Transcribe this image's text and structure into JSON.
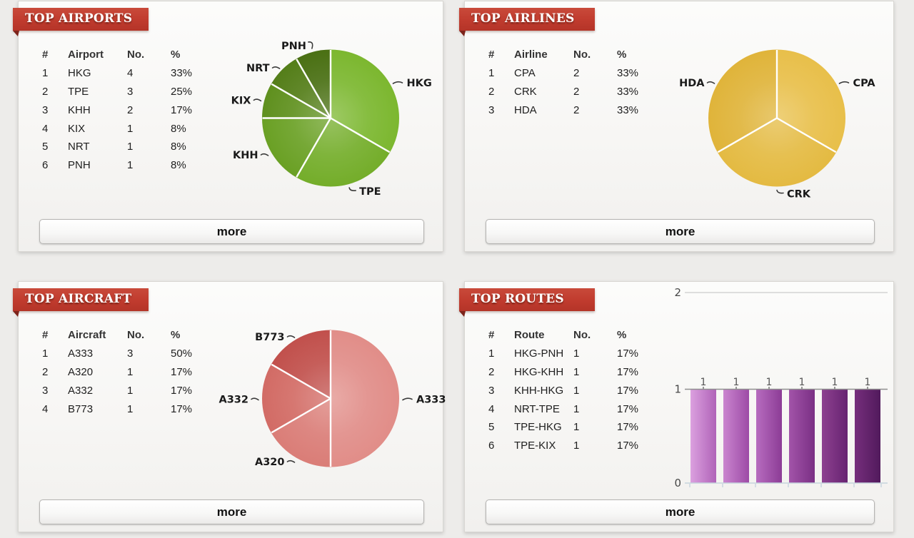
{
  "page_bg": "#edecea",
  "accent_red": "#c03b2e",
  "panels": [
    {
      "title": "TOP AIRPORTS",
      "table": {
        "columns": [
          "#",
          "Airport",
          "No.",
          "%"
        ],
        "rows": [
          [
            "1",
            "HKG",
            "4",
            "33%"
          ],
          [
            "2",
            "TPE",
            "3",
            "25%"
          ],
          [
            "3",
            "KHH",
            "2",
            "17%"
          ],
          [
            "4",
            "KIX",
            "1",
            "8%"
          ],
          [
            "5",
            "NRT",
            "1",
            "8%"
          ],
          [
            "6",
            "PNH",
            "1",
            "8%"
          ]
        ]
      },
      "more_label": "more"
    },
    {
      "title": "TOP AIRLINES",
      "table": {
        "columns": [
          "#",
          "Airline",
          "No.",
          "%"
        ],
        "rows": [
          [
            "1",
            "CPA",
            "2",
            "33%"
          ],
          [
            "2",
            "CRK",
            "2",
            "33%"
          ],
          [
            "3",
            "HDA",
            "2",
            "33%"
          ]
        ]
      },
      "more_label": "more"
    },
    {
      "title": "TOP AIRCRAFT",
      "table": {
        "columns": [
          "#",
          "Aircraft",
          "No.",
          "%"
        ],
        "rows": [
          [
            "1",
            "A333",
            "3",
            "50%"
          ],
          [
            "2",
            "A320",
            "1",
            "17%"
          ],
          [
            "3",
            "A332",
            "1",
            "17%"
          ],
          [
            "4",
            "B773",
            "1",
            "17%"
          ]
        ]
      },
      "more_label": "more"
    },
    {
      "title": "TOP ROUTES",
      "table": {
        "columns": [
          "#",
          "Route",
          "No.",
          "%"
        ],
        "rows": [
          [
            "1",
            "HKG-PNH",
            "1",
            "17%"
          ],
          [
            "2",
            "HKG-KHH",
            "1",
            "17%"
          ],
          [
            "3",
            "KHH-HKG",
            "1",
            "17%"
          ],
          [
            "4",
            "NRT-TPE",
            "1",
            "17%"
          ],
          [
            "5",
            "TPE-HKG",
            "1",
            "17%"
          ],
          [
            "6",
            "TPE-KIX",
            "1",
            "17%"
          ]
        ]
      },
      "more_label": "more"
    }
  ],
  "chart_data": [
    {
      "type": "pie",
      "title": "TOP AIRPORTS",
      "categories": [
        "HKG",
        "TPE",
        "KHH",
        "KIX",
        "NRT",
        "PNH"
      ],
      "values": [
        4,
        3,
        2,
        1,
        1,
        1
      ],
      "percents": [
        33,
        25,
        17,
        8,
        8,
        8
      ],
      "colors": [
        "#7cb72f",
        "#74ad2a",
        "#6aa024",
        "#5f901e",
        "#547e19",
        "#4a7013"
      ],
      "start_angle": 0,
      "direction": "clockwise",
      "legend_position": "outside-labels"
    },
    {
      "type": "pie",
      "title": "TOP AIRLINES",
      "categories": [
        "CPA",
        "CRK",
        "HDA"
      ],
      "values": [
        2,
        2,
        2
      ],
      "percents": [
        33,
        33,
        33
      ],
      "colors": [
        "#e8bf4a",
        "#e4ba42",
        "#e0b43a"
      ],
      "start_angle": 0,
      "direction": "clockwise",
      "legend_position": "outside-labels"
    },
    {
      "type": "pie",
      "title": "TOP AIRCRAFT",
      "categories": [
        "A333",
        "A320",
        "A332",
        "B773"
      ],
      "values": [
        3,
        1,
        1,
        1
      ],
      "percents": [
        50,
        17,
        17,
        17
      ],
      "colors": [
        "#e18d88",
        "#da7d77",
        "#d26b65",
        "#c1504c"
      ],
      "start_angle": 0,
      "direction": "clockwise",
      "legend_position": "outside-labels"
    },
    {
      "type": "bar",
      "title": "TOP ROUTES",
      "categories": [
        "HKG-PNH",
        "HKG-KHH",
        "KHH-HKG",
        "NRT-TPE",
        "TPE-HKG",
        "TPE-KIX"
      ],
      "values": [
        1,
        1,
        1,
        1,
        1,
        1
      ],
      "value_labels": [
        "1",
        "1",
        "1",
        "1",
        "1",
        "1"
      ],
      "ylim": [
        0,
        2
      ],
      "yticks": [
        0,
        1,
        2
      ],
      "grid": "horizontal",
      "bar_colors": [
        [
          "#dba0df",
          "#b063b8"
        ],
        [
          "#ca85cf",
          "#9d4ba6"
        ],
        [
          "#b76cbf",
          "#8c3c96"
        ],
        [
          "#a254a9",
          "#7a2f84"
        ],
        [
          "#8d4190",
          "#672371"
        ],
        [
          "#762e7c",
          "#511a5c"
        ]
      ]
    }
  ]
}
